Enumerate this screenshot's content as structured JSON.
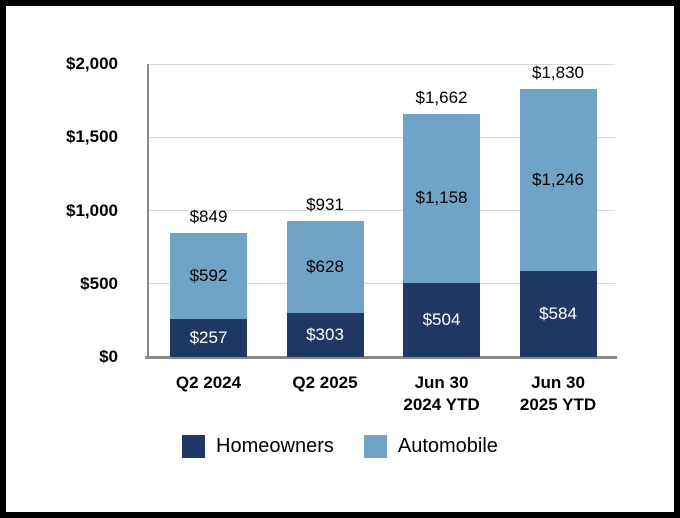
{
  "window": {
    "background_color": "#FFFFFF",
    "border_color": "#000000"
  },
  "chart_data": {
    "type": "bar",
    "stacked": true,
    "title": "",
    "xlabel": "",
    "ylabel": "",
    "grid": true,
    "legend_position": "bottom",
    "ylim": [
      0,
      2000
    ],
    "categories": [
      "Q2 2024",
      "Q2 2025",
      "Jun 30 2024 YTD",
      "Jun 30 2025 YTD"
    ],
    "category_label_lines": [
      [
        "Q2 2024"
      ],
      [
        "Q2 2025"
      ],
      [
        "Jun 30",
        "2024 YTD"
      ],
      [
        "Jun 30",
        "2025 YTD"
      ]
    ],
    "series": [
      {
        "name": "Homeowners",
        "color": "#1F3864",
        "label_color": "#FFFFFF",
        "values": [
          257,
          303,
          504,
          584
        ],
        "labels": [
          "$257",
          "$303",
          "$504",
          "$584"
        ]
      },
      {
        "name": "Automobile",
        "color": "#6FA4C8",
        "label_color": "#000000",
        "values": [
          592,
          628,
          1158,
          1246
        ],
        "labels": [
          "$592",
          "$628",
          "$1,158",
          "$1,246"
        ]
      }
    ],
    "totals": [
      849,
      931,
      1662,
      1830
    ],
    "total_labels": [
      "$849",
      "$931",
      "$1,662",
      "$1,830"
    ],
    "y_ticks": [
      {
        "value": 2000,
        "label": "$2,000"
      },
      {
        "value": 1500,
        "label": "$1,500"
      },
      {
        "value": 1000,
        "label": "$1,000"
      },
      {
        "value": 500,
        "label": "$500"
      },
      {
        "value": 0,
        "label": "$0"
      }
    ]
  },
  "legend": {
    "items": [
      {
        "label": "Homeowners",
        "color": "#1F3864"
      },
      {
        "label": "Automobile",
        "color": "#6FA4C8"
      }
    ]
  },
  "colors": {
    "gridline": "#D9D9D9",
    "axis_line": "#898989",
    "text": "#000000"
  }
}
